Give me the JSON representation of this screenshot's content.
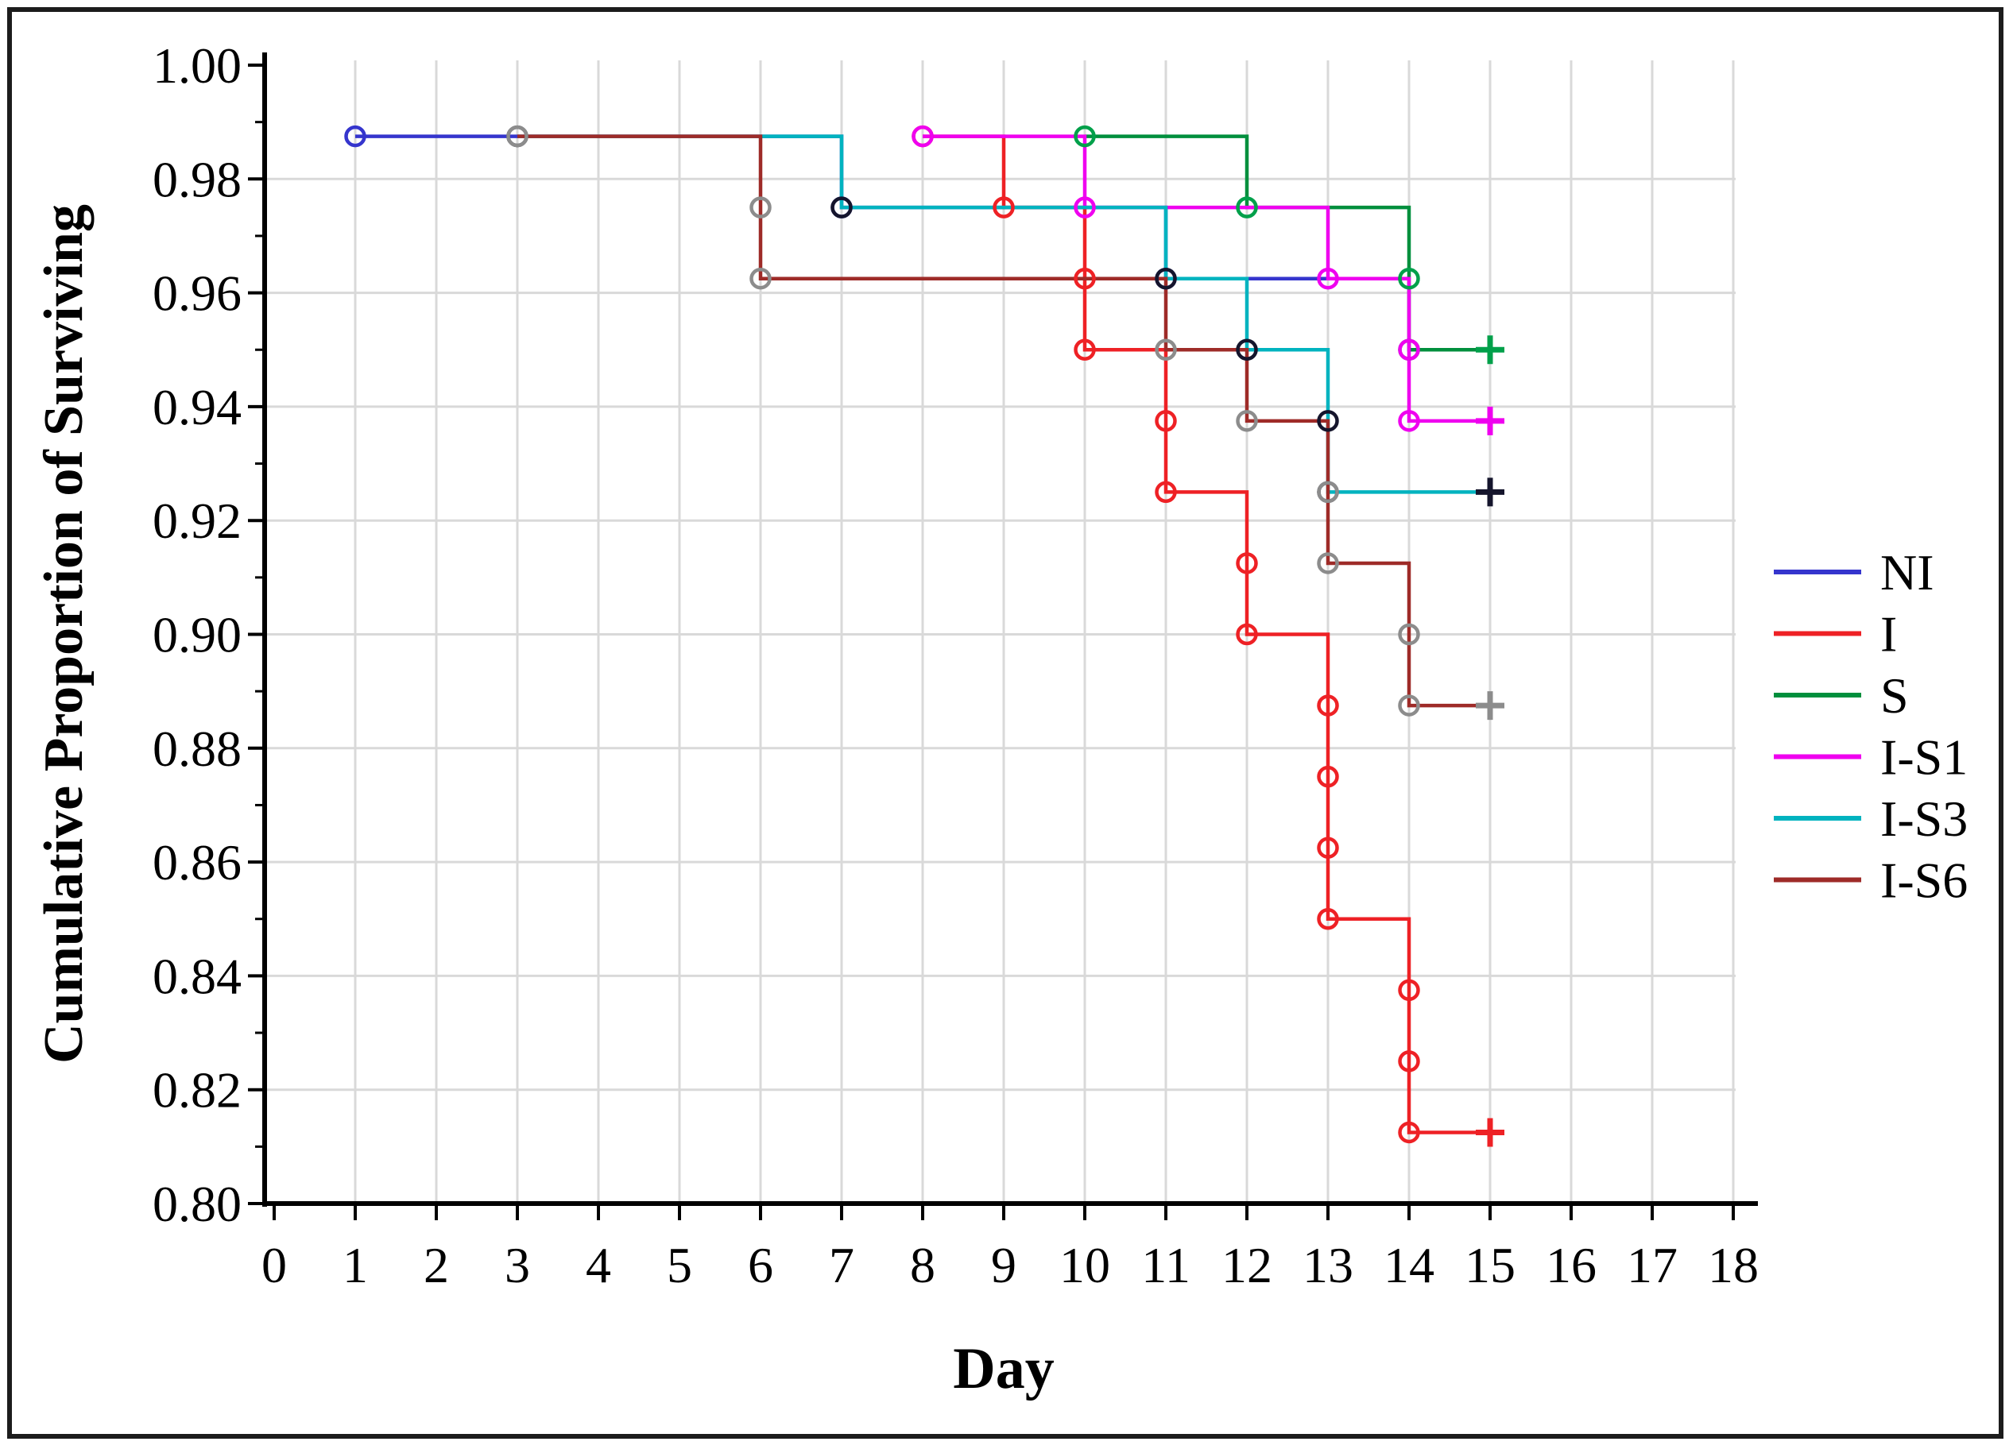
{
  "figure": {
    "background": "#ffffff",
    "border_color": "#1c1c1c",
    "grid_color": "#d9d9d9",
    "axis_color": "#000000"
  },
  "chart_data": {
    "type": "line",
    "subtype": "kaplan-meier-step-survival",
    "title": "",
    "xlabel": "Day",
    "ylabel": "Cumulative Proportion of Surviving",
    "xlim": [
      0,
      18
    ],
    "ylim": [
      0.8,
      1.0
    ],
    "grid": true,
    "legend_position": "right-middle",
    "x_ticks": [
      0,
      1,
      2,
      3,
      4,
      5,
      6,
      7,
      8,
      9,
      10,
      11,
      12,
      13,
      14,
      15,
      16,
      17,
      18
    ],
    "x_tick_labels": [
      "0",
      "1",
      "2",
      "3",
      "4",
      "5",
      "6",
      "7",
      "8",
      "9",
      "10",
      "11",
      "12",
      "13",
      "14",
      "15",
      "16",
      "17",
      "18"
    ],
    "y_ticks": [
      1.0,
      0.98,
      0.96,
      0.94,
      0.92,
      0.9,
      0.88,
      0.86,
      0.84,
      0.82,
      0.8
    ],
    "y_tick_labels": [
      "1.00",
      "0.98",
      "0.96",
      "0.94",
      "0.92",
      "0.90",
      "0.88",
      "0.86",
      "0.84",
      "0.82",
      "0.80"
    ],
    "y_minor_tick_step": 0.01,
    "series": [
      {
        "name": "NI",
        "line_color": "#3535cd",
        "marker_color": "#3535cd",
        "path": [
          [
            1,
            0.9875
          ],
          [
            7,
            0.9875
          ],
          [
            7,
            0.975
          ],
          [
            11,
            0.975
          ],
          [
            11,
            0.9625
          ],
          [
            14,
            0.9625
          ]
        ],
        "markers": [
          [
            1,
            0.9875
          ],
          [
            7,
            0.975
          ],
          [
            11,
            0.9625
          ]
        ],
        "censor": null
      },
      {
        "name": "I",
        "line_color": "#ee2125",
        "marker_color": "#ee2125",
        "path": [
          [
            8,
            0.9875
          ],
          [
            9,
            0.9875
          ],
          [
            9,
            0.975
          ],
          [
            10,
            0.975
          ],
          [
            10,
            0.95
          ],
          [
            11,
            0.95
          ],
          [
            11,
            0.925
          ],
          [
            12,
            0.925
          ],
          [
            12,
            0.9
          ],
          [
            13,
            0.9
          ],
          [
            13,
            0.85
          ],
          [
            14,
            0.85
          ],
          [
            14,
            0.8125
          ],
          [
            15,
            0.8125
          ]
        ],
        "markers": [
          [
            8,
            0.9875
          ],
          [
            9,
            0.975
          ],
          [
            10,
            0.9625
          ],
          [
            10,
            0.95
          ],
          [
            11,
            0.9375
          ],
          [
            11,
            0.925
          ],
          [
            12,
            0.9125
          ],
          [
            12,
            0.9
          ],
          [
            13,
            0.8875
          ],
          [
            13,
            0.875
          ],
          [
            13,
            0.8625
          ],
          [
            13,
            0.85
          ],
          [
            14,
            0.8375
          ],
          [
            14,
            0.825
          ],
          [
            14,
            0.8125
          ]
        ],
        "censor": [
          15,
          0.8125
        ]
      },
      {
        "name": "S",
        "line_color": "#008f3d",
        "marker_color": "#00a04a",
        "path": [
          [
            10,
            0.9875
          ],
          [
            12,
            0.9875
          ],
          [
            12,
            0.975
          ],
          [
            14,
            0.975
          ],
          [
            14,
            0.95
          ],
          [
            15,
            0.95
          ]
        ],
        "markers": [
          [
            10,
            0.9875
          ],
          [
            12,
            0.975
          ],
          [
            14,
            0.9625
          ],
          [
            14,
            0.95
          ]
        ],
        "censor": [
          15,
          0.95
        ]
      },
      {
        "name": "I-S1",
        "line_color": "#ef00ef",
        "marker_color": "#ef00ef",
        "path": [
          [
            8,
            0.9875
          ],
          [
            10,
            0.9875
          ],
          [
            10,
            0.975
          ],
          [
            13,
            0.975
          ],
          [
            13,
            0.9625
          ],
          [
            14,
            0.9625
          ],
          [
            14,
            0.9375
          ],
          [
            15,
            0.9375
          ]
        ],
        "markers": [
          [
            8,
            0.9875
          ],
          [
            10,
            0.975
          ],
          [
            13,
            0.9625
          ],
          [
            14,
            0.95
          ],
          [
            14,
            0.9375
          ]
        ],
        "censor": [
          15,
          0.9375
        ]
      },
      {
        "name": "I-S3",
        "line_color": "#00b3bf",
        "marker_color": "#15152c",
        "path": [
          [
            3,
            0.9875
          ],
          [
            7,
            0.9875
          ],
          [
            7,
            0.975
          ],
          [
            11,
            0.975
          ],
          [
            11,
            0.9625
          ],
          [
            12,
            0.9625
          ],
          [
            12,
            0.95
          ],
          [
            13,
            0.95
          ],
          [
            13,
            0.925
          ],
          [
            15,
            0.925
          ]
        ],
        "markers": [
          [
            3,
            0.9875
          ],
          [
            7,
            0.975
          ],
          [
            11,
            0.9625
          ],
          [
            12,
            0.95
          ],
          [
            13,
            0.9375
          ],
          [
            13,
            0.925
          ]
        ],
        "censor": [
          15,
          0.925
        ]
      },
      {
        "name": "I-S6",
        "line_color": "#9e2b28",
        "marker_color": "#8c8c8c",
        "path": [
          [
            3,
            0.9875
          ],
          [
            6,
            0.9875
          ],
          [
            6,
            0.9625
          ],
          [
            11,
            0.9625
          ],
          [
            11,
            0.95
          ],
          [
            12,
            0.95
          ],
          [
            12,
            0.9375
          ],
          [
            13,
            0.9375
          ],
          [
            13,
            0.9125
          ],
          [
            14,
            0.9125
          ],
          [
            14,
            0.8875
          ],
          [
            15,
            0.8875
          ]
        ],
        "markers": [
          [
            3,
            0.9875
          ],
          [
            6,
            0.975
          ],
          [
            6,
            0.9625
          ],
          [
            11,
            0.95
          ],
          [
            12,
            0.9375
          ],
          [
            13,
            0.925
          ],
          [
            13,
            0.9125
          ],
          [
            14,
            0.9
          ],
          [
            14,
            0.8875
          ]
        ],
        "censor": [
          15,
          0.8875
        ]
      }
    ],
    "legend_items": [
      "NI",
      "I",
      "S",
      "I-S1",
      "I-S3",
      "I-S6"
    ]
  }
}
